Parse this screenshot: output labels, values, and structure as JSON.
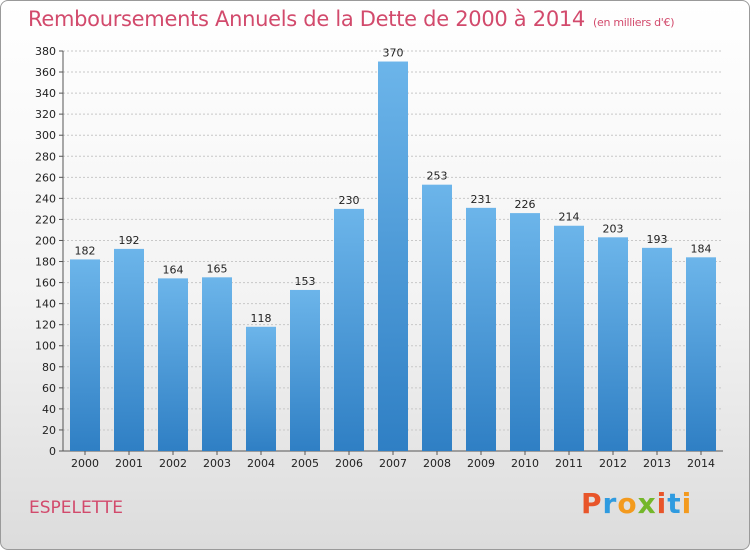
{
  "header": {
    "title": "Remboursements Annuels de la Dette de 2000 à 2014",
    "unit": "(en milliers d'€)"
  },
  "footer": {
    "commune": "ESPELETTE",
    "logo": "Proxiti"
  },
  "colors": {
    "title": "#d24a6c",
    "bar_top": "#6cb5ea",
    "bar_bottom": "#2f7fc4",
    "logo_letters": [
      "#e8552a",
      "#2f9be0",
      "#f39a1e",
      "#74b72a",
      "#e8552a",
      "#2f9be0",
      "#f39a1e"
    ]
  },
  "chart_data": {
    "type": "bar",
    "title": "Remboursements Annuels de la Dette de 2000 à 2014",
    "xlabel": "",
    "ylabel": "",
    "categories": [
      "2000",
      "2001",
      "2002",
      "2003",
      "2004",
      "2005",
      "2006",
      "2007",
      "2008",
      "2009",
      "2010",
      "2011",
      "2012",
      "2013",
      "2014"
    ],
    "values": [
      182,
      192,
      164,
      165,
      118,
      153,
      230,
      370,
      253,
      231,
      226,
      214,
      203,
      193,
      184
    ],
    "ylim": [
      0,
      380
    ],
    "yticks": [
      0,
      20,
      40,
      60,
      80,
      100,
      120,
      140,
      160,
      180,
      200,
      220,
      240,
      260,
      280,
      300,
      320,
      340,
      360,
      380
    ],
    "grid": true,
    "legend": "none"
  }
}
